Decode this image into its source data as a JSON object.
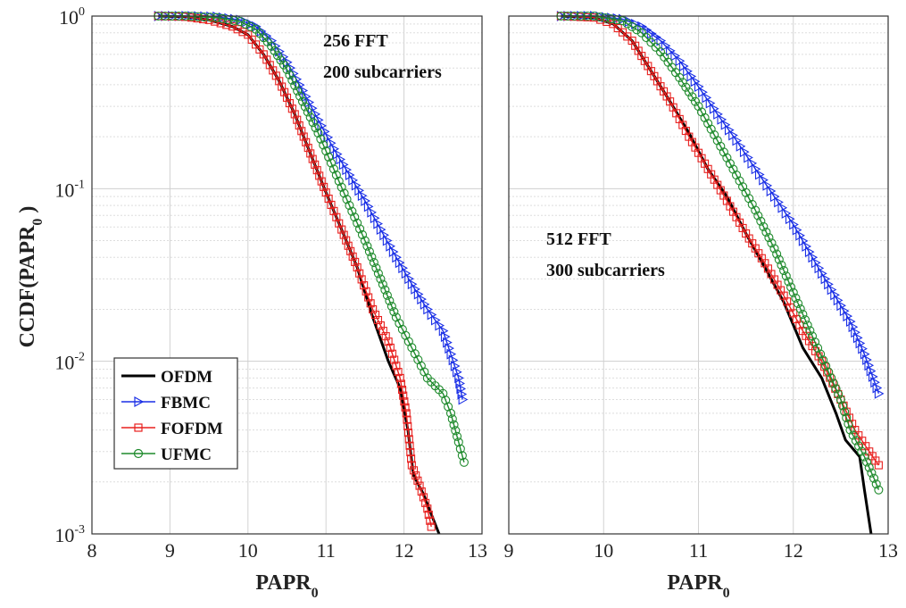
{
  "chart_data": [
    {
      "type": "line",
      "panel": "left",
      "xlabel": "PAPR",
      "xlabel_sub": "0",
      "ylabel": "CCDF(PAPR",
      "ylabel_sub": "0",
      "ylabel_close": " )",
      "yscale": "log",
      "xlim": [
        8,
        13
      ],
      "ylim": [
        0.001,
        1
      ],
      "xticks": [
        "8",
        "9",
        "10",
        "11",
        "12",
        "13"
      ],
      "yticks": [
        {
          "mant": "10",
          "exp": "0"
        },
        {
          "mant": "10",
          "exp": "-1"
        },
        {
          "mant": "10",
          "exp": "-2"
        },
        {
          "mant": "10",
          "exp": "-3"
        }
      ],
      "grid": true,
      "annotation": [
        "256 FFT",
        "200 subcarriers"
      ],
      "legend_position": "bottom-left",
      "legend": [
        "OFDM",
        "FBMC",
        "FOFDM",
        "UFMC"
      ],
      "series": [
        {
          "name": "OFDM",
          "color": "#000000",
          "marker": "none",
          "points": [
            [
              8.85,
              1.0
            ],
            [
              9.2,
              0.99
            ],
            [
              9.5,
              0.95
            ],
            [
              9.8,
              0.87
            ],
            [
              10.0,
              0.78
            ],
            [
              10.2,
              0.6
            ],
            [
              10.4,
              0.42
            ],
            [
              10.6,
              0.27
            ],
            [
              10.8,
              0.16
            ],
            [
              11.0,
              0.095
            ],
            [
              11.2,
              0.058
            ],
            [
              11.4,
              0.035
            ],
            [
              11.6,
              0.018
            ],
            [
              11.8,
              0.01
            ],
            [
              11.95,
              0.007
            ],
            [
              12.05,
              0.004
            ],
            [
              12.12,
              0.0022
            ],
            [
              12.25,
              0.0017
            ],
            [
              12.35,
              0.0013
            ],
            [
              12.45,
              0.001
            ]
          ]
        },
        {
          "name": "FBMC",
          "color": "#1a2fe6",
          "marker": "triangle-right",
          "points": [
            [
              8.85,
              1.0
            ],
            [
              9.2,
              1.0
            ],
            [
              9.6,
              0.99
            ],
            [
              9.9,
              0.95
            ],
            [
              10.1,
              0.87
            ],
            [
              10.3,
              0.72
            ],
            [
              10.5,
              0.54
            ],
            [
              10.7,
              0.37
            ],
            [
              10.9,
              0.25
            ],
            [
              11.1,
              0.17
            ],
            [
              11.3,
              0.12
            ],
            [
              11.5,
              0.085
            ],
            [
              11.7,
              0.058
            ],
            [
              11.9,
              0.04
            ],
            [
              12.1,
              0.028
            ],
            [
              12.3,
              0.02
            ],
            [
              12.5,
              0.015
            ],
            [
              12.6,
              0.011
            ],
            [
              12.7,
              0.008
            ],
            [
              12.75,
              0.006
            ]
          ]
        },
        {
          "name": "FOFDM",
          "color": "#e8201e",
          "marker": "square",
          "points": [
            [
              8.85,
              1.0
            ],
            [
              9.2,
              0.99
            ],
            [
              9.5,
              0.95
            ],
            [
              9.8,
              0.87
            ],
            [
              10.0,
              0.78
            ],
            [
              10.2,
              0.6
            ],
            [
              10.4,
              0.42
            ],
            [
              10.6,
              0.27
            ],
            [
              10.8,
              0.16
            ],
            [
              11.0,
              0.095
            ],
            [
              11.2,
              0.058
            ],
            [
              11.4,
              0.035
            ],
            [
              11.6,
              0.02
            ],
            [
              11.8,
              0.013
            ],
            [
              11.95,
              0.008
            ],
            [
              12.03,
              0.005
            ],
            [
              12.1,
              0.0025
            ],
            [
              12.2,
              0.0019
            ],
            [
              12.3,
              0.0014
            ],
            [
              12.35,
              0.0011
            ]
          ]
        },
        {
          "name": "UFMC",
          "color": "#1e8a2c",
          "marker": "circle",
          "points": [
            [
              8.85,
              1.0
            ],
            [
              9.2,
              1.0
            ],
            [
              9.6,
              0.98
            ],
            [
              9.9,
              0.93
            ],
            [
              10.1,
              0.84
            ],
            [
              10.3,
              0.67
            ],
            [
              10.5,
              0.49
            ],
            [
              10.7,
              0.32
            ],
            [
              10.9,
              0.21
            ],
            [
              11.1,
              0.13
            ],
            [
              11.3,
              0.08
            ],
            [
              11.5,
              0.05
            ],
            [
              11.7,
              0.03
            ],
            [
              11.9,
              0.018
            ],
            [
              12.1,
              0.012
            ],
            [
              12.3,
              0.008
            ],
            [
              12.5,
              0.0065
            ],
            [
              12.6,
              0.005
            ],
            [
              12.7,
              0.0034
            ],
            [
              12.77,
              0.0026
            ]
          ]
        }
      ]
    },
    {
      "type": "line",
      "panel": "right",
      "xlabel": "PAPR",
      "xlabel_sub": "0",
      "yscale": "log",
      "xlim": [
        9,
        13
      ],
      "ylim": [
        0.001,
        1
      ],
      "xticks": [
        "9",
        "10",
        "11",
        "12",
        "13"
      ],
      "grid": true,
      "annotation": [
        "512 FFT",
        "300 subcarriers"
      ],
      "series": [
        {
          "name": "OFDM",
          "color": "#000000",
          "marker": "none",
          "points": [
            [
              9.55,
              1.0
            ],
            [
              9.9,
              0.98
            ],
            [
              10.1,
              0.9
            ],
            [
              10.3,
              0.72
            ],
            [
              10.5,
              0.48
            ],
            [
              10.7,
              0.32
            ],
            [
              10.9,
              0.21
            ],
            [
              11.1,
              0.13
            ],
            [
              11.3,
              0.09
            ],
            [
              11.5,
              0.055
            ],
            [
              11.7,
              0.035
            ],
            [
              11.9,
              0.022
            ],
            [
              12.1,
              0.012
            ],
            [
              12.3,
              0.008
            ],
            [
              12.45,
              0.005
            ],
            [
              12.55,
              0.0035
            ],
            [
              12.7,
              0.0028
            ],
            [
              12.75,
              0.0018
            ],
            [
              12.82,
              0.001
            ]
          ]
        },
        {
          "name": "FBMC",
          "color": "#1a2fe6",
          "marker": "triangle-right",
          "points": [
            [
              9.55,
              1.0
            ],
            [
              9.9,
              1.0
            ],
            [
              10.2,
              0.96
            ],
            [
              10.4,
              0.87
            ],
            [
              10.6,
              0.72
            ],
            [
              10.8,
              0.55
            ],
            [
              11.0,
              0.39
            ],
            [
              11.2,
              0.27
            ],
            [
              11.4,
              0.19
            ],
            [
              11.6,
              0.13
            ],
            [
              11.8,
              0.09
            ],
            [
              12.0,
              0.062
            ],
            [
              12.2,
              0.04
            ],
            [
              12.4,
              0.026
            ],
            [
              12.6,
              0.017
            ],
            [
              12.75,
              0.011
            ],
            [
              12.9,
              0.0065
            ]
          ]
        },
        {
          "name": "FOFDM",
          "color": "#e8201e",
          "marker": "square",
          "points": [
            [
              9.55,
              1.0
            ],
            [
              9.9,
              0.98
            ],
            [
              10.1,
              0.9
            ],
            [
              10.3,
              0.72
            ],
            [
              10.5,
              0.48
            ],
            [
              10.7,
              0.32
            ],
            [
              10.9,
              0.2
            ],
            [
              11.1,
              0.13
            ],
            [
              11.3,
              0.085
            ],
            [
              11.5,
              0.055
            ],
            [
              11.7,
              0.037
            ],
            [
              11.9,
              0.024
            ],
            [
              12.1,
              0.015
            ],
            [
              12.3,
              0.01
            ],
            [
              12.5,
              0.006
            ],
            [
              12.65,
              0.004
            ],
            [
              12.8,
              0.003
            ],
            [
              12.9,
              0.0025
            ]
          ]
        },
        {
          "name": "UFMC",
          "color": "#1e8a2c",
          "marker": "circle",
          "points": [
            [
              9.55,
              1.0
            ],
            [
              9.9,
              1.0
            ],
            [
              10.2,
              0.94
            ],
            [
              10.4,
              0.8
            ],
            [
              10.6,
              0.62
            ],
            [
              10.8,
              0.44
            ],
            [
              11.0,
              0.3
            ],
            [
              11.2,
              0.19
            ],
            [
              11.4,
              0.12
            ],
            [
              11.6,
              0.075
            ],
            [
              11.8,
              0.045
            ],
            [
              12.0,
              0.025
            ],
            [
              12.2,
              0.014
            ],
            [
              12.4,
              0.008
            ],
            [
              12.5,
              0.006
            ],
            [
              12.6,
              0.004
            ],
            [
              12.75,
              0.0028
            ],
            [
              12.85,
              0.0021
            ],
            [
              12.9,
              0.0018
            ]
          ]
        }
      ]
    }
  ]
}
